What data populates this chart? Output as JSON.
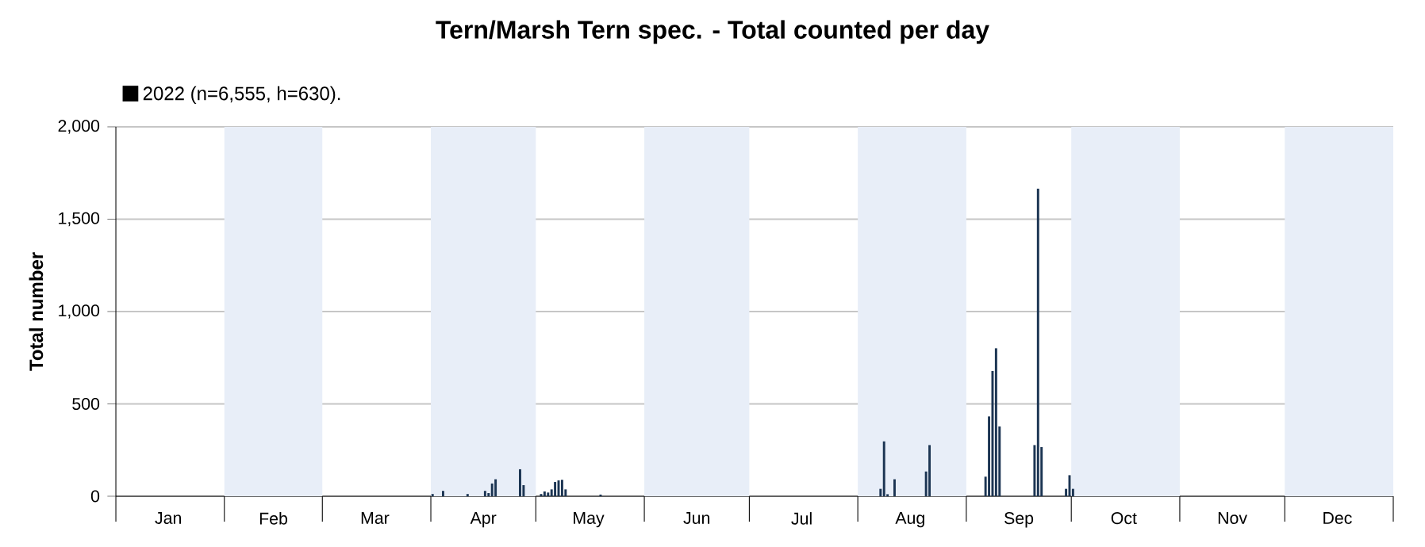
{
  "chart_data": {
    "type": "bar",
    "title": "Tern/Marsh Tern spec. - Total counted per day",
    "ylabel": "Total number",
    "x": [
      "2022-04-01",
      "2022-04-04",
      "2022-04-11",
      "2022-04-16",
      "2022-04-17",
      "2022-04-18",
      "2022-04-19",
      "2022-04-26",
      "2022-04-27",
      "2022-05-02",
      "2022-05-03",
      "2022-05-04",
      "2022-05-05",
      "2022-05-06",
      "2022-05-07",
      "2022-05-08",
      "2022-05-09",
      "2022-05-19",
      "2022-08-07",
      "2022-08-08",
      "2022-08-09",
      "2022-08-11",
      "2022-08-20",
      "2022-08-21",
      "2022-09-06",
      "2022-09-07",
      "2022-09-08",
      "2022-09-09",
      "2022-09-10",
      "2022-09-20",
      "2022-09-21",
      "2022-09-22",
      "2022-09-29",
      "2022-09-30",
      "2022-10-01"
    ],
    "series": [
      {
        "name": "2022 (n=6,555, h=630).",
        "color": "#1c3553",
        "values": [
          12,
          29,
          12,
          29,
          17,
          69,
          92,
          146,
          60,
          12,
          26,
          20,
          37,
          77,
          86,
          89,
          37,
          9,
          40,
          297,
          11,
          92,
          134,
          277,
          106,
          432,
          678,
          801,
          378,
          277,
          1665,
          266,
          40,
          114,
          40
        ]
      }
    ],
    "xlim": [
      "2022-01-01",
      "2023-01-01"
    ],
    "xticks": [
      {
        "value": "2022-01-01",
        "label": null
      },
      {
        "value": "2022-01-16",
        "label": "Jan"
      },
      {
        "value": "2022-02-01",
        "label": null
      },
      {
        "value": "2022-02-15",
        "label": "Feb"
      },
      {
        "value": "2022-03-01",
        "label": null
      },
      {
        "value": "2022-03-16",
        "label": "Mar"
      },
      {
        "value": "2022-04-01",
        "label": null
      },
      {
        "value": "2022-04-16",
        "label": "Apr"
      },
      {
        "value": "2022-05-01",
        "label": null
      },
      {
        "value": "2022-05-16",
        "label": "May"
      },
      {
        "value": "2022-06-01",
        "label": null
      },
      {
        "value": "2022-06-16",
        "label": "Jun"
      },
      {
        "value": "2022-07-01",
        "label": null
      },
      {
        "value": "2022-07-16",
        "label": "Jul"
      },
      {
        "value": "2022-08-01",
        "label": null
      },
      {
        "value": "2022-08-16",
        "label": "Aug"
      },
      {
        "value": "2022-09-01",
        "label": null
      },
      {
        "value": "2022-09-16",
        "label": "Sep"
      },
      {
        "value": "2022-10-01",
        "label": null
      },
      {
        "value": "2022-10-16",
        "label": "Oct"
      },
      {
        "value": "2022-11-01",
        "label": null
      },
      {
        "value": "2022-11-16",
        "label": "Nov"
      },
      {
        "value": "2022-12-01",
        "label": null
      },
      {
        "value": "2022-12-16",
        "label": "Dec"
      },
      {
        "value": "2023-01-01",
        "label": null
      }
    ],
    "ylim": [
      0,
      2000
    ],
    "yticks": [
      0,
      {
        "value": 500,
        "label": "500"
      },
      {
        "value": 1000,
        "label": "1,000"
      },
      {
        "value": 1500,
        "label": "1,500"
      },
      {
        "value": 2000,
        "label": "2,000"
      }
    ],
    "bands": [
      {
        "axis": "x",
        "from": "2022-02-01",
        "to": "2022-03-01",
        "color": "#e8eef8"
      },
      {
        "axis": "x",
        "from": "2022-04-01",
        "to": "2022-05-01",
        "color": "#e8eef8"
      },
      {
        "axis": "x",
        "from": "2022-06-01",
        "to": "2022-07-01",
        "color": "#e8eef8"
      },
      {
        "axis": "x",
        "from": "2022-08-01",
        "to": "2022-09-01",
        "color": "#e8eef8"
      },
      {
        "axis": "x",
        "from": "2022-10-01",
        "to": "2022-11-01",
        "color": "#e8eef8"
      },
      {
        "axis": "x",
        "from": "2022-12-01",
        "to": "2023-01-01",
        "color": "#e8eef8"
      }
    ],
    "grid": "y",
    "legend": "top left"
  }
}
